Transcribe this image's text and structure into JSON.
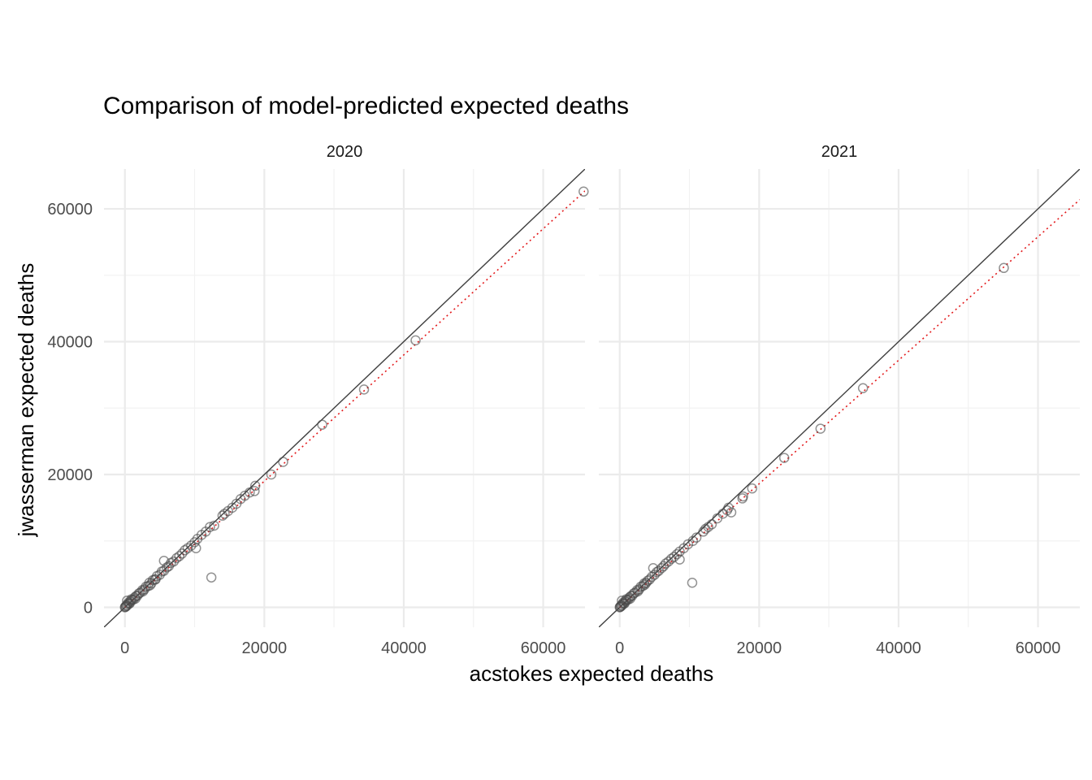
{
  "chart_data": {
    "type": "scatter",
    "title": "Comparison of model-predicted expected deaths",
    "xlabel": "acstokes expected deaths",
    "ylabel": "jwasserman expected deaths",
    "xlim": [
      -3000,
      66000
    ],
    "ylim": [
      -3000,
      66000
    ],
    "x_ticks": [
      0,
      20000,
      40000,
      60000
    ],
    "y_ticks": [
      0,
      20000,
      40000,
      60000
    ],
    "x_tick_labels": [
      "0",
      "20000",
      "40000",
      "60000"
    ],
    "y_tick_labels": [
      "0",
      "20000",
      "40000",
      "60000"
    ],
    "grid": true,
    "reference_line": "y = x",
    "fit_line_color": "#e31a1c",
    "point_color": "#4a4a4a",
    "panels": [
      {
        "facet": "2020",
        "fit_slope": 0.95,
        "points": [
          [
            0,
            0
          ],
          [
            50,
            80
          ],
          [
            120,
            100
          ],
          [
            200,
            300
          ],
          [
            300,
            250
          ],
          [
            400,
            500
          ],
          [
            500,
            700
          ],
          [
            600,
            550
          ],
          [
            800,
            900
          ],
          [
            1000,
            1100
          ],
          [
            1200,
            1150
          ],
          [
            1400,
            1500
          ],
          [
            1600,
            1700
          ],
          [
            1800,
            1750
          ],
          [
            2000,
            2100
          ],
          [
            2200,
            2200
          ],
          [
            2500,
            2600
          ],
          [
            2800,
            2700
          ],
          [
            3000,
            3100
          ],
          [
            3300,
            3200
          ],
          [
            3500,
            3700
          ],
          [
            3800,
            3600
          ],
          [
            4000,
            4100
          ],
          [
            4300,
            4200
          ],
          [
            4600,
            4700
          ],
          [
            5000,
            4900
          ],
          [
            5300,
            5400
          ],
          [
            5600,
            5500
          ],
          [
            6000,
            6000
          ],
          [
            6300,
            6200
          ],
          [
            6600,
            6700
          ],
          [
            7000,
            6900
          ],
          [
            7400,
            7400
          ],
          [
            7800,
            7700
          ],
          [
            8200,
            8100
          ],
          [
            8600,
            8600
          ],
          [
            9000,
            8900
          ],
          [
            9500,
            9300
          ],
          [
            10000,
            9800
          ],
          [
            10400,
            10300
          ],
          [
            11000,
            10900
          ],
          [
            11600,
            11400
          ],
          [
            12200,
            12100
          ],
          [
            12800,
            12300
          ],
          [
            14000,
            13800
          ],
          [
            14300,
            14100
          ],
          [
            14800,
            14500
          ],
          [
            15400,
            15000
          ],
          [
            16000,
            15600
          ],
          [
            16600,
            16300
          ],
          [
            17200,
            16800
          ],
          [
            17900,
            17300
          ],
          [
            18600,
            17500
          ],
          [
            18700,
            18300
          ],
          [
            21000,
            20000
          ],
          [
            22700,
            21900
          ],
          [
            28300,
            27500
          ],
          [
            34300,
            32800
          ],
          [
            41700,
            40200
          ],
          [
            65800,
            62600
          ],
          [
            5600,
            7000
          ],
          [
            10200,
            8900
          ],
          [
            12400,
            4500
          ],
          [
            1500,
            1300
          ],
          [
            700,
            600
          ],
          [
            2600,
            2400
          ],
          [
            3600,
            3300
          ],
          [
            4400,
            4200
          ],
          [
            300,
            1000
          ],
          [
            900,
            1200
          ]
        ]
      },
      {
        "facet": "2021",
        "fit_slope": 0.93,
        "points": [
          [
            0,
            0
          ],
          [
            50,
            80
          ],
          [
            120,
            100
          ],
          [
            200,
            300
          ],
          [
            300,
            250
          ],
          [
            400,
            500
          ],
          [
            500,
            700
          ],
          [
            600,
            550
          ],
          [
            800,
            900
          ],
          [
            1000,
            1100
          ],
          [
            1200,
            1150
          ],
          [
            1400,
            1500
          ],
          [
            1600,
            1700
          ],
          [
            1800,
            1750
          ],
          [
            2000,
            2100
          ],
          [
            2200,
            2200
          ],
          [
            2500,
            2600
          ],
          [
            2800,
            2700
          ],
          [
            3000,
            3100
          ],
          [
            3300,
            3200
          ],
          [
            3500,
            3600
          ],
          [
            3800,
            3700
          ],
          [
            4000,
            4000
          ],
          [
            4300,
            4200
          ],
          [
            4600,
            4600
          ],
          [
            5000,
            4900
          ],
          [
            5300,
            5300
          ],
          [
            5600,
            5500
          ],
          [
            6000,
            5900
          ],
          [
            6300,
            6200
          ],
          [
            6600,
            6600
          ],
          [
            7000,
            6900
          ],
          [
            7400,
            7300
          ],
          [
            7800,
            7600
          ],
          [
            8200,
            8000
          ],
          [
            8600,
            8400
          ],
          [
            9200,
            8900
          ],
          [
            9800,
            9500
          ],
          [
            10500,
            10000
          ],
          [
            11000,
            10500
          ],
          [
            12000,
            11400
          ],
          [
            12300,
            11800
          ],
          [
            12700,
            12100
          ],
          [
            13200,
            12500
          ],
          [
            14000,
            13400
          ],
          [
            14800,
            14100
          ],
          [
            15400,
            14600
          ],
          [
            15600,
            15000
          ],
          [
            16000,
            14300
          ],
          [
            17600,
            16400
          ],
          [
            17700,
            16700
          ],
          [
            19000,
            17900
          ],
          [
            23600,
            22500
          ],
          [
            28800,
            26900
          ],
          [
            34900,
            33000
          ],
          [
            55100,
            51100
          ],
          [
            4800,
            5900
          ],
          [
            8600,
            7200
          ],
          [
            10400,
            3700
          ],
          [
            1500,
            1300
          ],
          [
            700,
            600
          ],
          [
            2600,
            2400
          ],
          [
            3600,
            3400
          ],
          [
            300,
            1000
          ],
          [
            900,
            1200
          ]
        ]
      }
    ]
  }
}
